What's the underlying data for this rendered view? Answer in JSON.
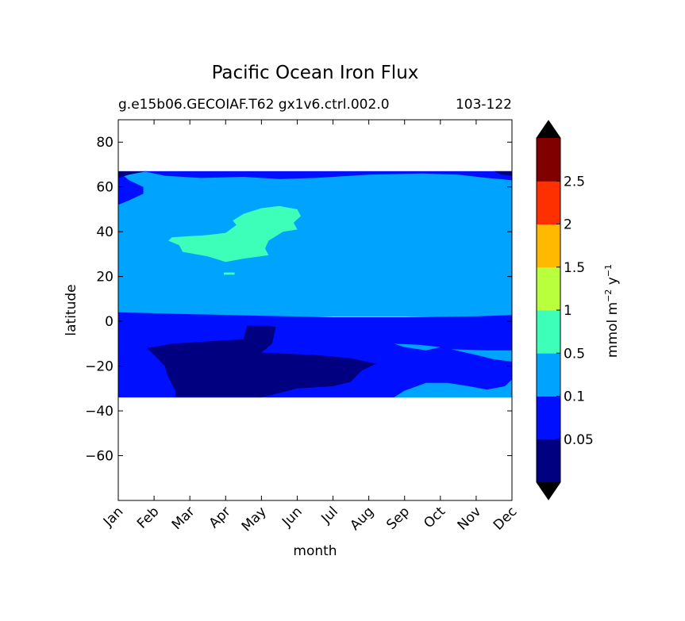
{
  "chart_data": {
    "type": "heatmap",
    "plot_style": "filled contour",
    "title": "Pacific Ocean Iron Flux",
    "subtitle_left": "g.e15b06.GECOIAF.T62 gx1v6.ctrl.002.0",
    "subtitle_right": "103-122",
    "xlabel": "month",
    "ylabel": "latitude",
    "x_ticks": [
      "Jan",
      "Feb",
      "Mar",
      "Apr",
      "May",
      "Jun",
      "Jul",
      "Aug",
      "Sep",
      "Oct",
      "Nov",
      "Dec"
    ],
    "x_tick_rotation": 45,
    "xlim": [
      0,
      11
    ],
    "ylim": [
      -80,
      90
    ],
    "y_ticks": [
      -60,
      -40,
      -20,
      0,
      20,
      40,
      60,
      80
    ],
    "y_tick_labels": [
      "−60",
      "−40",
      "−20",
      "0",
      "20",
      "40",
      "60",
      "80"
    ],
    "data_lat_range": [
      -34,
      67
    ],
    "grid": false,
    "colorbar": {
      "label": "mmol m⁻² y⁻¹",
      "levels": [
        0.05,
        0.1,
        0.5,
        1,
        1.5,
        2,
        2.5
      ],
      "tick_labels": [
        "0.05",
        "0.1",
        "0.5",
        "1",
        "1.5",
        "2",
        "2.5"
      ],
      "extend": "both",
      "bands": [
        {
          "range": "< 0.05",
          "color": "#000080"
        },
        {
          "range": "0.05–0.1",
          "color": "#0010ff"
        },
        {
          "range": "0.1–0.5",
          "color": "#00a4ff"
        },
        {
          "range": "0.5–1",
          "color": "#3dffb9"
        },
        {
          "range": "1–1.5",
          "color": "#b9ff3d"
        },
        {
          "range": "1.5–2",
          "color": "#ffb900"
        },
        {
          "range": "2–2.5",
          "color": "#ff3000"
        },
        {
          "range": "> 2.5",
          "color": "#800000"
        }
      ],
      "under_color": "#000000",
      "over_color": "#000000"
    },
    "regions": [
      {
        "level": "0.1–0.5",
        "color": "#00a4ff",
        "points": [
          [
            0,
            67
          ],
          [
            11,
            67
          ],
          [
            11,
            2
          ],
          [
            0,
            2
          ]
        ]
      },
      {
        "level": "0.05–0.1",
        "color": "#0010ff",
        "points": [
          [
            0,
            67
          ],
          [
            0.3,
            63
          ],
          [
            0.7,
            60
          ],
          [
            0.7,
            57
          ],
          [
            0.3,
            54
          ],
          [
            0,
            52
          ]
        ]
      },
      {
        "level": "0.05–0.1",
        "color": "#0010ff",
        "points": [
          [
            0.7,
            67
          ],
          [
            1.3,
            65
          ],
          [
            2.3,
            64
          ],
          [
            3.5,
            64.5
          ],
          [
            4.5,
            63.5
          ],
          [
            5.5,
            64
          ],
          [
            7,
            65.5
          ],
          [
            8.5,
            66
          ],
          [
            9.5,
            65.5
          ],
          [
            10.3,
            64
          ],
          [
            11,
            63
          ],
          [
            11,
            67
          ]
        ]
      },
      {
        "level": "0.05–0.1",
        "color": "#0010ff",
        "points": [
          [
            0,
            4
          ],
          [
            2,
            3.2
          ],
          [
            4,
            2.5
          ],
          [
            6,
            1.8
          ],
          [
            8,
            1.8
          ],
          [
            10,
            2.2
          ],
          [
            11,
            2.8
          ],
          [
            11,
            -34
          ],
          [
            0,
            -34
          ]
        ]
      },
      {
        "level": "< 0.05",
        "color": "#000080",
        "points": [
          [
            0,
            67
          ],
          [
            0.8,
            67
          ],
          [
            0.3,
            65.5
          ],
          [
            0,
            64
          ]
        ]
      },
      {
        "level": "< 0.05",
        "color": "#000080",
        "points": [
          [
            10.5,
            67
          ],
          [
            11,
            67
          ],
          [
            11,
            65
          ],
          [
            10.7,
            65.5
          ]
        ]
      },
      {
        "level": "< 0.05",
        "color": "#000080",
        "points": [
          [
            0.8,
            -12
          ],
          [
            1.5,
            -10
          ],
          [
            2.5,
            -9
          ],
          [
            3.5,
            -8
          ],
          [
            3.6,
            -2
          ],
          [
            4.2,
            -2
          ],
          [
            4.4,
            -2.5
          ],
          [
            4.3,
            -10
          ],
          [
            4,
            -14
          ],
          [
            5.5,
            -15
          ],
          [
            6.5,
            -16.5
          ],
          [
            7.2,
            -19
          ],
          [
            6.8,
            -22
          ],
          [
            6.5,
            -27
          ],
          [
            6,
            -29
          ],
          [
            5,
            -30
          ],
          [
            4,
            -34
          ],
          [
            1.6,
            -34
          ],
          [
            1.6,
            -31
          ],
          [
            1.4,
            -25
          ],
          [
            1.3,
            -20
          ],
          [
            1,
            -15
          ]
        ]
      },
      {
        "level": "0.1–0.5",
        "color": "#00a4ff",
        "points": [
          [
            7.7,
            -10
          ],
          [
            8,
            -11.5
          ],
          [
            8.6,
            -13
          ],
          [
            9,
            -11.5
          ],
          [
            8.4,
            -10.5
          ]
        ]
      },
      {
        "level": "0.1–0.5",
        "color": "#00a4ff",
        "points": [
          [
            7.7,
            -34
          ],
          [
            8,
            -31
          ],
          [
            8.6,
            -27.5
          ],
          [
            9.2,
            -27.5
          ],
          [
            9.8,
            -29
          ],
          [
            10.3,
            -30.5
          ],
          [
            10.8,
            -29
          ],
          [
            11,
            -26
          ],
          [
            11,
            -34
          ]
        ]
      },
      {
        "level": "0.1–0.5",
        "color": "#00a4ff",
        "points": [
          [
            9.3,
            -12.5
          ],
          [
            10,
            -15
          ],
          [
            10.5,
            -17
          ],
          [
            11,
            -18
          ],
          [
            11,
            -13
          ],
          [
            10.3,
            -13
          ]
        ]
      },
      {
        "level": "0.5–1",
        "color": "#3dffb9",
        "points": [
          [
            1.5,
            37.5
          ],
          [
            2,
            38
          ],
          [
            2.5,
            38.5
          ],
          [
            3,
            39.5
          ],
          [
            3.3,
            43
          ],
          [
            3.2,
            45
          ],
          [
            3.5,
            48
          ],
          [
            4,
            50.5
          ],
          [
            4.5,
            51.5
          ],
          [
            5,
            50
          ],
          [
            5.1,
            47
          ],
          [
            4.9,
            44
          ],
          [
            5,
            41
          ],
          [
            4.6,
            40
          ],
          [
            4.2,
            36
          ],
          [
            4.1,
            32.5
          ],
          [
            4.2,
            29.5
          ],
          [
            3.5,
            28
          ],
          [
            3,
            26.5
          ],
          [
            2.5,
            29
          ],
          [
            1.8,
            31
          ],
          [
            1.7,
            34
          ],
          [
            1.4,
            36
          ]
        ]
      },
      {
        "level": "0.5–1",
        "color": "#3dffb9",
        "points": [
          [
            2.95,
            21.8
          ],
          [
            3.25,
            21.8
          ],
          [
            3.25,
            20.8
          ],
          [
            2.95,
            20.8
          ]
        ]
      }
    ]
  }
}
